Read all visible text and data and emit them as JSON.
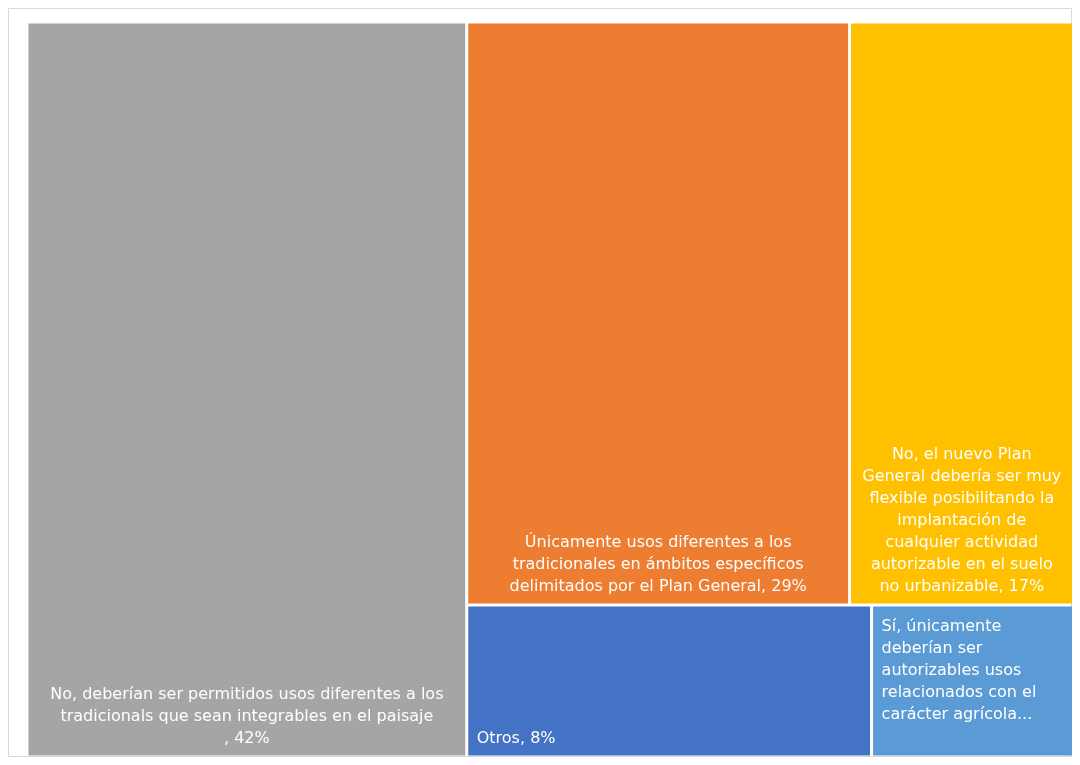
{
  "chart_data": {
    "type": "other",
    "categories": [
      "No, deberían ser permitidos usos diferentes a los tradicionals que sean integrables en el paisaje",
      "Únicamente usos diferentes a los tradicionales en ámbitos específicos delimitados por el Plan General",
      "No, el nuevo Plan General debería ser muy flexible posibilitando la implantación de cualquier actividad autorizable en el suelo no urbanizable",
      "Otros",
      "Sí, únicamente deberían ser autorizables usos relacionados con el carácter agrícola..."
    ],
    "values": [
      42,
      29,
      17,
      8,
      null
    ],
    "value_labels": [
      ", 42%",
      ", 29%",
      ", 17%",
      ", 8%",
      null
    ],
    "colors": [
      "#a5a5a5",
      "#ed7d31",
      "#ffc000",
      "#4472c4",
      "#5b9bd5"
    ]
  }
}
